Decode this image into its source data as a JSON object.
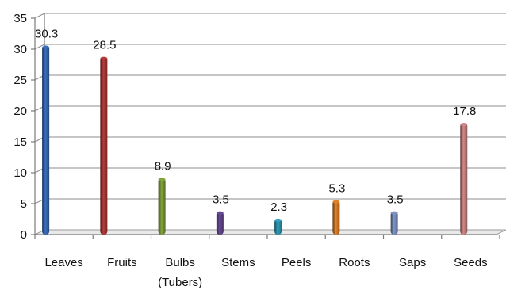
{
  "chart_data": {
    "type": "bar",
    "title": "",
    "xlabel": "",
    "ylabel": "",
    "ylim": [
      0,
      35
    ],
    "y_ticks": [
      "0",
      "5",
      "10",
      "15",
      "20",
      "25",
      "30",
      "35"
    ],
    "grid": true,
    "categories": [
      [
        "Leaves"
      ],
      [
        "Fruits"
      ],
      [
        "Bulbs",
        "(Tubers)"
      ],
      [
        "Stems"
      ],
      [
        "Peels"
      ],
      [
        "Roots"
      ],
      [
        "Saps"
      ],
      [
        "Seeds"
      ]
    ],
    "values": [
      30.3,
      28.5,
      8.9,
      3.5,
      2.3,
      5.3,
      3.5,
      17.8
    ],
    "value_labels": [
      "30.3",
      "28.5",
      "8.9",
      "3.5",
      "2.3",
      "5.3",
      "3.5",
      "17.8"
    ],
    "colors": [
      "#3a6fbf",
      "#b83a3a",
      "#82a53c",
      "#6a4c98",
      "#2fa4c2",
      "#e3832a",
      "#7f97c8",
      "#d58888"
    ]
  }
}
